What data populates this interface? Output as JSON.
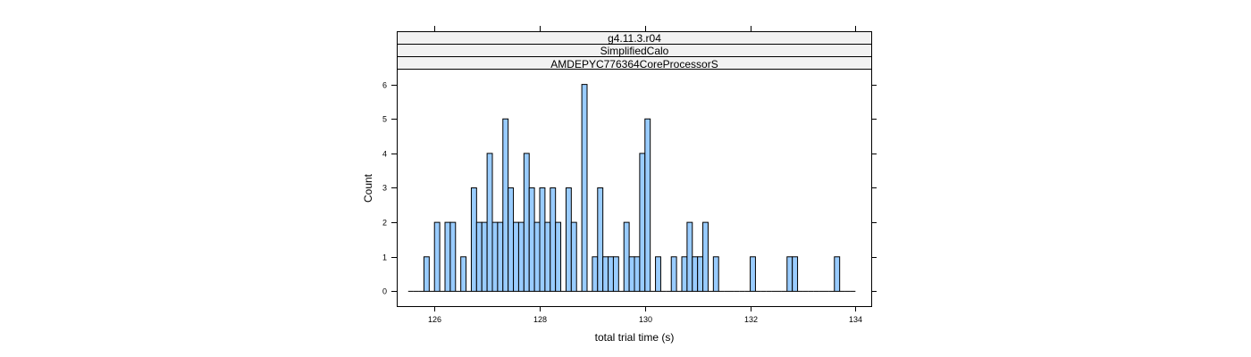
{
  "strips": [
    "g4.11.3.r04",
    "SimplifiedCalo",
    "AMDEPYC776364CoreProcessorS"
  ],
  "colors": {
    "bar_fill": "#99ccff",
    "bar_stroke": "#000000",
    "strip_fill": "#f2f2f2",
    "frame": "#000000"
  },
  "chart_data": {
    "type": "bar",
    "xlabel": "total trial time (s)",
    "ylabel": "Count",
    "xlim": [
      125.3,
      134.3
    ],
    "ylim": [
      -0.43,
      6.43
    ],
    "xticks": [
      126,
      128,
      130,
      132,
      134
    ],
    "yticks": [
      0,
      1,
      2,
      3,
      4,
      5,
      6
    ],
    "bin_width": 0.1,
    "bins": [
      125.5,
      125.6,
      125.7,
      125.8,
      125.9,
      126.0,
      126.1,
      126.2,
      126.3,
      126.4,
      126.5,
      126.6,
      126.7,
      126.8,
      126.9,
      127.0,
      127.1,
      127.2,
      127.3,
      127.4,
      127.5,
      127.6,
      127.7,
      127.8,
      127.9,
      128.0,
      128.1,
      128.2,
      128.3,
      128.4,
      128.5,
      128.6,
      128.7,
      128.8,
      128.9,
      129.0,
      129.1,
      129.2,
      129.3,
      129.4,
      129.5,
      129.6,
      129.7,
      129.8,
      129.9,
      130.0,
      130.1,
      130.2,
      130.3,
      130.4,
      130.5,
      130.6,
      130.7,
      130.8,
      130.9,
      131.0,
      131.1,
      131.2,
      131.3,
      131.4,
      131.5,
      131.6,
      131.7,
      131.8,
      131.9,
      132.0,
      132.1,
      132.2,
      132.3,
      132.4,
      132.5,
      132.6,
      132.7,
      132.8,
      132.9,
      133.0,
      133.1,
      133.2,
      133.3,
      133.4,
      133.5,
      133.6,
      133.7,
      133.8,
      133.9
    ],
    "counts": [
      0,
      0,
      0,
      1,
      0,
      2,
      0,
      2,
      2,
      0,
      1,
      0,
      3,
      2,
      2,
      4,
      2,
      2,
      5,
      3,
      2,
      2,
      4,
      3,
      2,
      3,
      2,
      3,
      2,
      0,
      3,
      2,
      0,
      6,
      0,
      1,
      3,
      1,
      1,
      1,
      0,
      2,
      1,
      1,
      4,
      5,
      0,
      1,
      0,
      0,
      1,
      0,
      1,
      2,
      1,
      1,
      2,
      0,
      1,
      0,
      0,
      0,
      0,
      0,
      0,
      1,
      0,
      0,
      0,
      0,
      0,
      0,
      1,
      1,
      0,
      0,
      0,
      0,
      0,
      0,
      0,
      1,
      0,
      0,
      0
    ]
  }
}
